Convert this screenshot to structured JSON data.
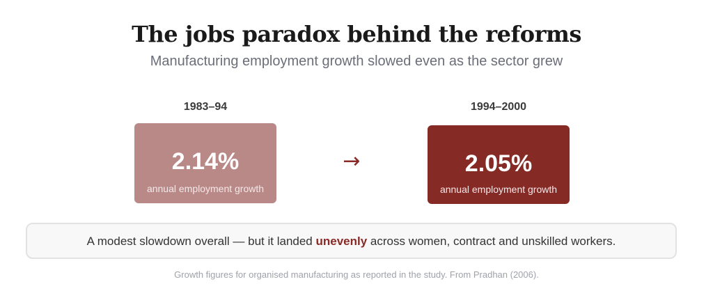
{
  "title": "The jobs paradox behind the reforms",
  "subtitle": "Manufacturing employment growth slowed even as the sector grew",
  "periods": [
    {
      "label": "1983–94",
      "value": "2.14%",
      "caption": "annual employment growth",
      "color": "#b98987"
    },
    {
      "label": "1994–2000",
      "value": "2.05%",
      "caption": "annual employment growth",
      "color": "#862a26"
    }
  ],
  "arrow": "→",
  "callout": {
    "before": "A modest slowdown overall — but it landed ",
    "emphasis": "unevenly",
    "after": " across women, contract and unskilled workers."
  },
  "footnote": "Growth figures for organised manufacturing as reported in the study. From Pradhan (2006).",
  "colors": {
    "accent": "#862a26",
    "muted_box": "#b98987"
  }
}
